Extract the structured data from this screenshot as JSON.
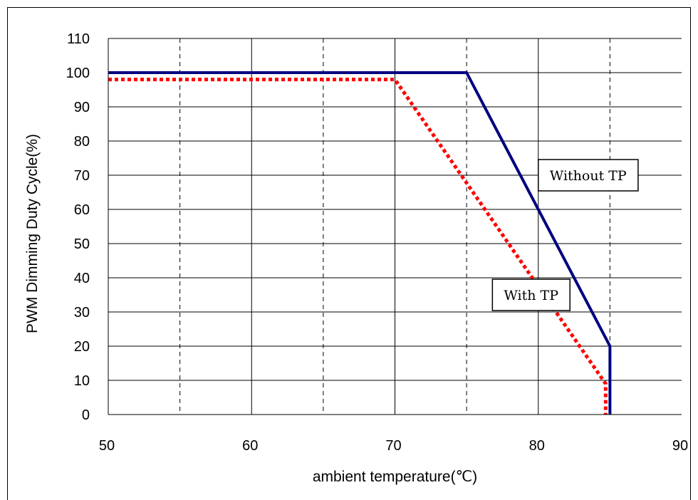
{
  "chart_data": {
    "type": "line",
    "xlabel": "ambient temperature(℃)",
    "ylabel": "PWM Dimming Duty Cycle(%)",
    "xlim": [
      50,
      90
    ],
    "ylim": [
      0,
      110
    ],
    "x_ticks": [
      50,
      60,
      70,
      80,
      90
    ],
    "y_ticks": [
      0,
      10,
      20,
      30,
      40,
      50,
      60,
      70,
      80,
      90,
      100,
      110
    ],
    "x_dashed_grid": [
      55,
      65,
      75,
      85
    ],
    "grid": true,
    "series": [
      {
        "name": "Without TP",
        "color": "#00007f",
        "style": "solid",
        "points": [
          [
            50,
            100
          ],
          [
            75,
            100
          ],
          [
            85,
            20
          ],
          [
            85,
            0
          ]
        ]
      },
      {
        "name": "With TP",
        "color": "#ff0000",
        "style": "dotted",
        "points": [
          [
            50,
            98
          ],
          [
            70,
            98
          ],
          [
            84.7,
            9
          ],
          [
            84.7,
            0
          ]
        ]
      }
    ],
    "annotations": [
      {
        "text": "Without TP",
        "anchor_x": 80,
        "anchor_y": 70
      },
      {
        "text": "With TP",
        "anchor_x": 76.8,
        "anchor_y": 35
      }
    ]
  }
}
